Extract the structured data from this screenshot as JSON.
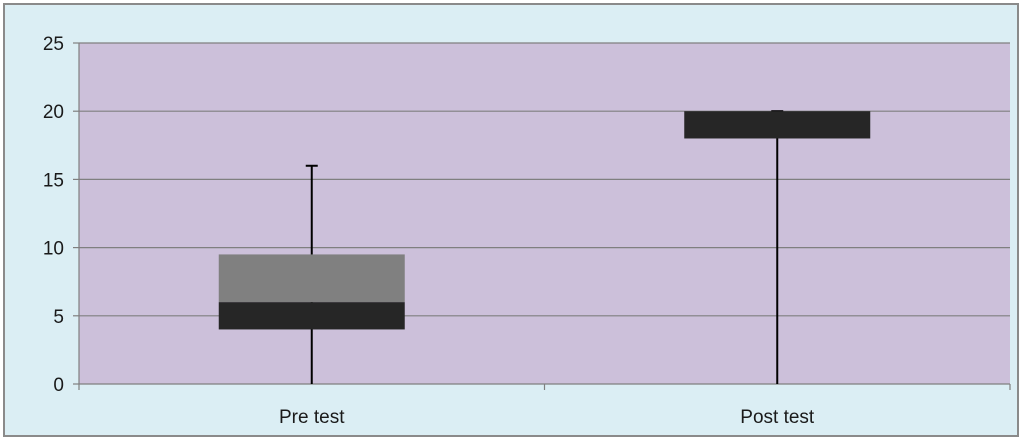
{
  "chart_data": {
    "type": "boxplot",
    "title": "",
    "xlabel": "",
    "ylabel": "",
    "categories": [
      "Pre test",
      "Post test"
    ],
    "ylim": [
      0,
      25
    ],
    "yticks": [
      0,
      5,
      10,
      15,
      20,
      25
    ],
    "grid": true,
    "legend": "none",
    "boxes": [
      {
        "category": "Pre test",
        "min": 0,
        "q1": 4,
        "median": 6,
        "q3": 9.5,
        "max": 16
      },
      {
        "category": "Post test",
        "min": 0,
        "q1": 18,
        "median": 20,
        "q3": 20,
        "max": 20
      }
    ],
    "colors": {
      "background": "#dbeef4",
      "plot_area": "#ccc0da",
      "lower_box": "#262626",
      "upper_box": "#808080",
      "whisker": "#000000",
      "gridline": "#7f7f7f"
    }
  }
}
